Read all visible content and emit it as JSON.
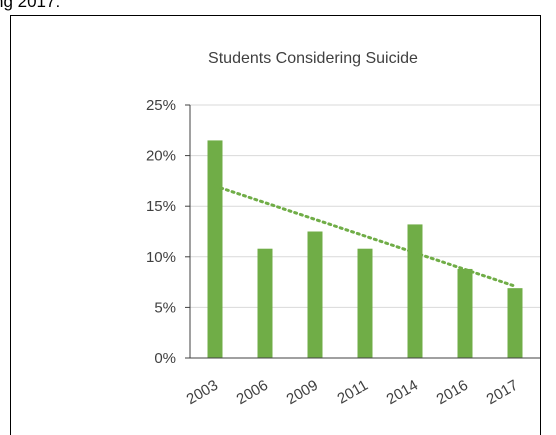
{
  "header": {
    "fragment": "ng 2017:"
  },
  "chart_data": {
    "type": "bar",
    "title": "Students Considering Suicide",
    "xlabel": "",
    "ylabel": "",
    "categories": [
      "2003",
      "2006",
      "2009",
      "2011",
      "2014",
      "2016",
      "2017"
    ],
    "series": [
      {
        "values": [
          21.5,
          10.8,
          12.5,
          10.8,
          13.2,
          8.8,
          6.9
        ]
      }
    ],
    "trendline": {
      "type": "linear",
      "style": "dotted",
      "start": 17.0,
      "end": 7.1
    },
    "ylim": [
      0,
      25
    ],
    "yticks": [
      0,
      5,
      10,
      15,
      20,
      25
    ],
    "ytick_format": "percent",
    "grid": true,
    "colors": {
      "bar": "#70AD47",
      "trendline": "#70AD47",
      "grid": "#D9D9D9",
      "axis": "#404040"
    }
  }
}
